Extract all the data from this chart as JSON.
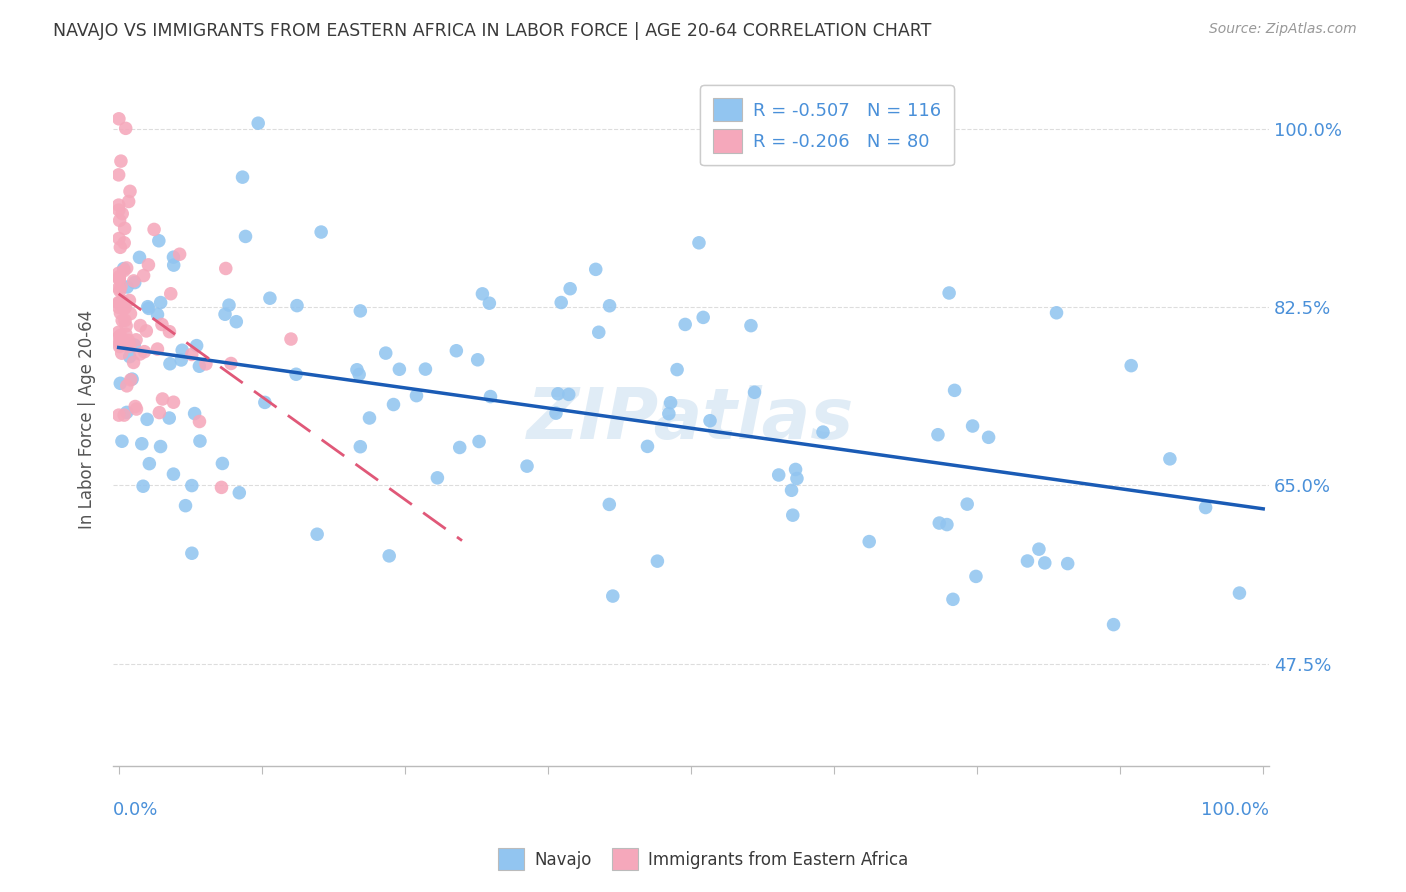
{
  "title": "NAVAJO VS IMMIGRANTS FROM EASTERN AFRICA IN LABOR FORCE | AGE 20-64 CORRELATION CHART",
  "source": "Source: ZipAtlas.com",
  "ylabel": "In Labor Force | Age 20-64",
  "y_ticks": [
    0.475,
    0.65,
    0.825,
    1.0
  ],
  "y_tick_labels": [
    "47.5%",
    "65.0%",
    "82.5%",
    "100.0%"
  ],
  "legend_label_blue": "Navajo",
  "legend_label_pink": "Immigrants from Eastern Africa",
  "R_blue": -0.507,
  "N_blue": 116,
  "R_pink": -0.206,
  "N_pink": 80,
  "blue_color": "#92C5F0",
  "pink_color": "#F5A8BB",
  "blue_line_color": "#1A5BB5",
  "pink_line_color": "#E05878",
  "title_color": "#3A3A3A",
  "axis_label_color": "#4A90D9",
  "watermark": "ZIPatlas",
  "watermark_color": "#C8DDEF",
  "background_color": "#FFFFFF",
  "grid_color": "#DDDDDD"
}
